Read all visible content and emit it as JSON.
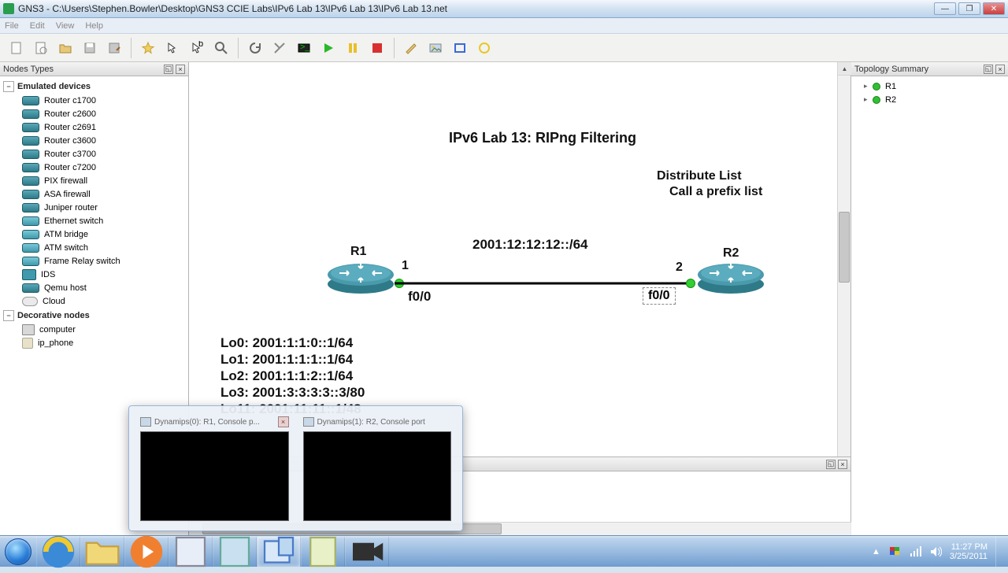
{
  "window": {
    "title": "GNS3 - C:\\Users\\Stephen.Bowler\\Desktop\\GNS3 CCIE Labs\\IPv6 Lab 13\\IPv6 Lab 13\\IPv6 Lab 13.net"
  },
  "menu": {
    "file": "File",
    "edit": "Edit",
    "view": "View",
    "help": "Help"
  },
  "panels": {
    "nodes_types": "Nodes Types",
    "topology_summary": "Topology Summary",
    "emulated": "Emulated devices",
    "decorative": "Decorative nodes"
  },
  "devices": {
    "emulated": [
      "Router c1700",
      "Router c2600",
      "Router c2691",
      "Router c3600",
      "Router c3700",
      "Router c7200",
      "PIX firewall",
      "ASA firewall",
      "Juniper router",
      "Ethernet switch",
      "ATM bridge",
      "ATM switch",
      "Frame Relay switch",
      "IDS",
      "Qemu host",
      "Cloud"
    ],
    "decorative": [
      "computer",
      "ip_phone"
    ]
  },
  "topology": {
    "nodes": [
      "R1",
      "R2"
    ]
  },
  "diagram": {
    "title": "IPv6 Lab 13: RIPng Filtering",
    "note1": "Distribute List",
    "note2": "Call a prefix list",
    "subnet": "2001:12:12:12::/64",
    "r1": "R1",
    "r2": "R2",
    "port1": "1",
    "port2": "2",
    "if1": "f0/0",
    "if2": "f0/0",
    "lo": [
      "Lo0: 2001:1:1:0::1/64",
      "Lo1: 2001:1:1:1::1/64",
      "Lo2: 2001:1:1:2::1/64",
      "Lo3: 2001:3:3:3:3::3/80",
      "Lo11: 2001:11:11::1/48"
    ]
  },
  "thumbs": {
    "t1": "Dynamips(0): R1, Console p...",
    "t2": "Dynamips(1): R2, Console port"
  },
  "tray": {
    "time": "11:27 PM",
    "date": "3/25/2011"
  },
  "toolbar_shapes": {
    "play_color": "#28b828",
    "pause_color": "#e8c028",
    "stop_color": "#d83030",
    "rect_color": "#3a6ad8",
    "circ_color": "#e8c828"
  }
}
